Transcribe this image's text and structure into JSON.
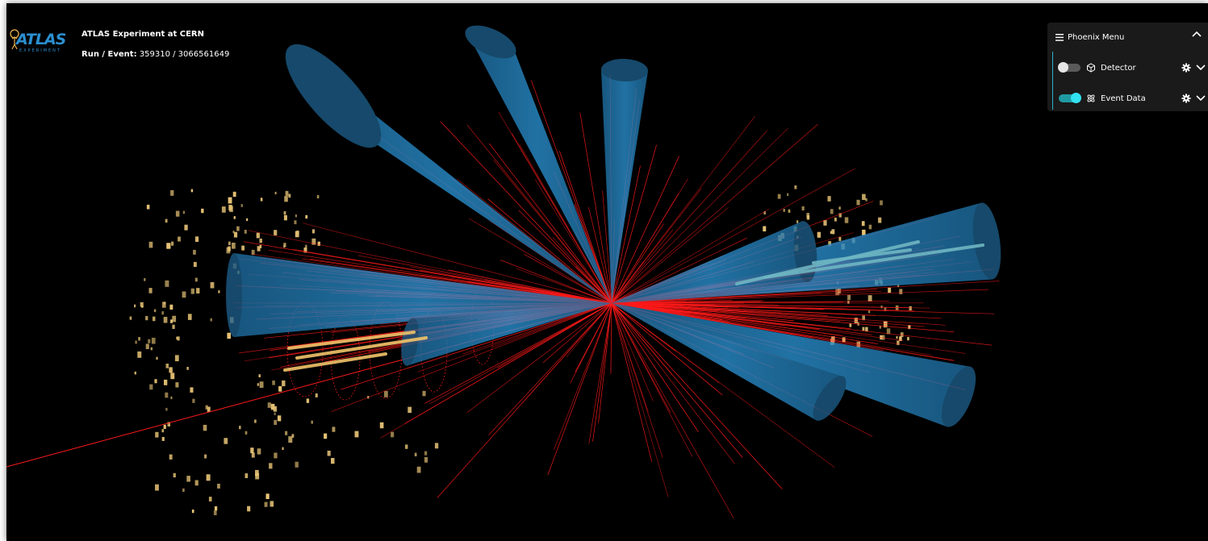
{
  "app": {
    "logo": "ATLAS",
    "logo_subtitle": "EXPERIMENT",
    "title": "ATLAS Experiment at CERN",
    "run_event_label": "Run / Event:",
    "run_event_value": "359310 / 3066561649"
  },
  "menu": {
    "title": "Phoenix Menu",
    "items": [
      {
        "label": "Detector",
        "toggle_on": false,
        "icon": "cube-icon"
      },
      {
        "label": "Event Data",
        "toggle_on": true,
        "icon": "atom-icon"
      }
    ]
  },
  "colors": {
    "background": "#000000",
    "jets": "#2a8fd0",
    "tracks": "#ff1a1a",
    "hits": "#e8c476",
    "accent": "#2ab5c8"
  },
  "icons": {
    "menu": "hamburger-icon",
    "collapse": "chevron-up-icon",
    "settings": "gear-icon",
    "expand": "chevron-down-icon"
  }
}
